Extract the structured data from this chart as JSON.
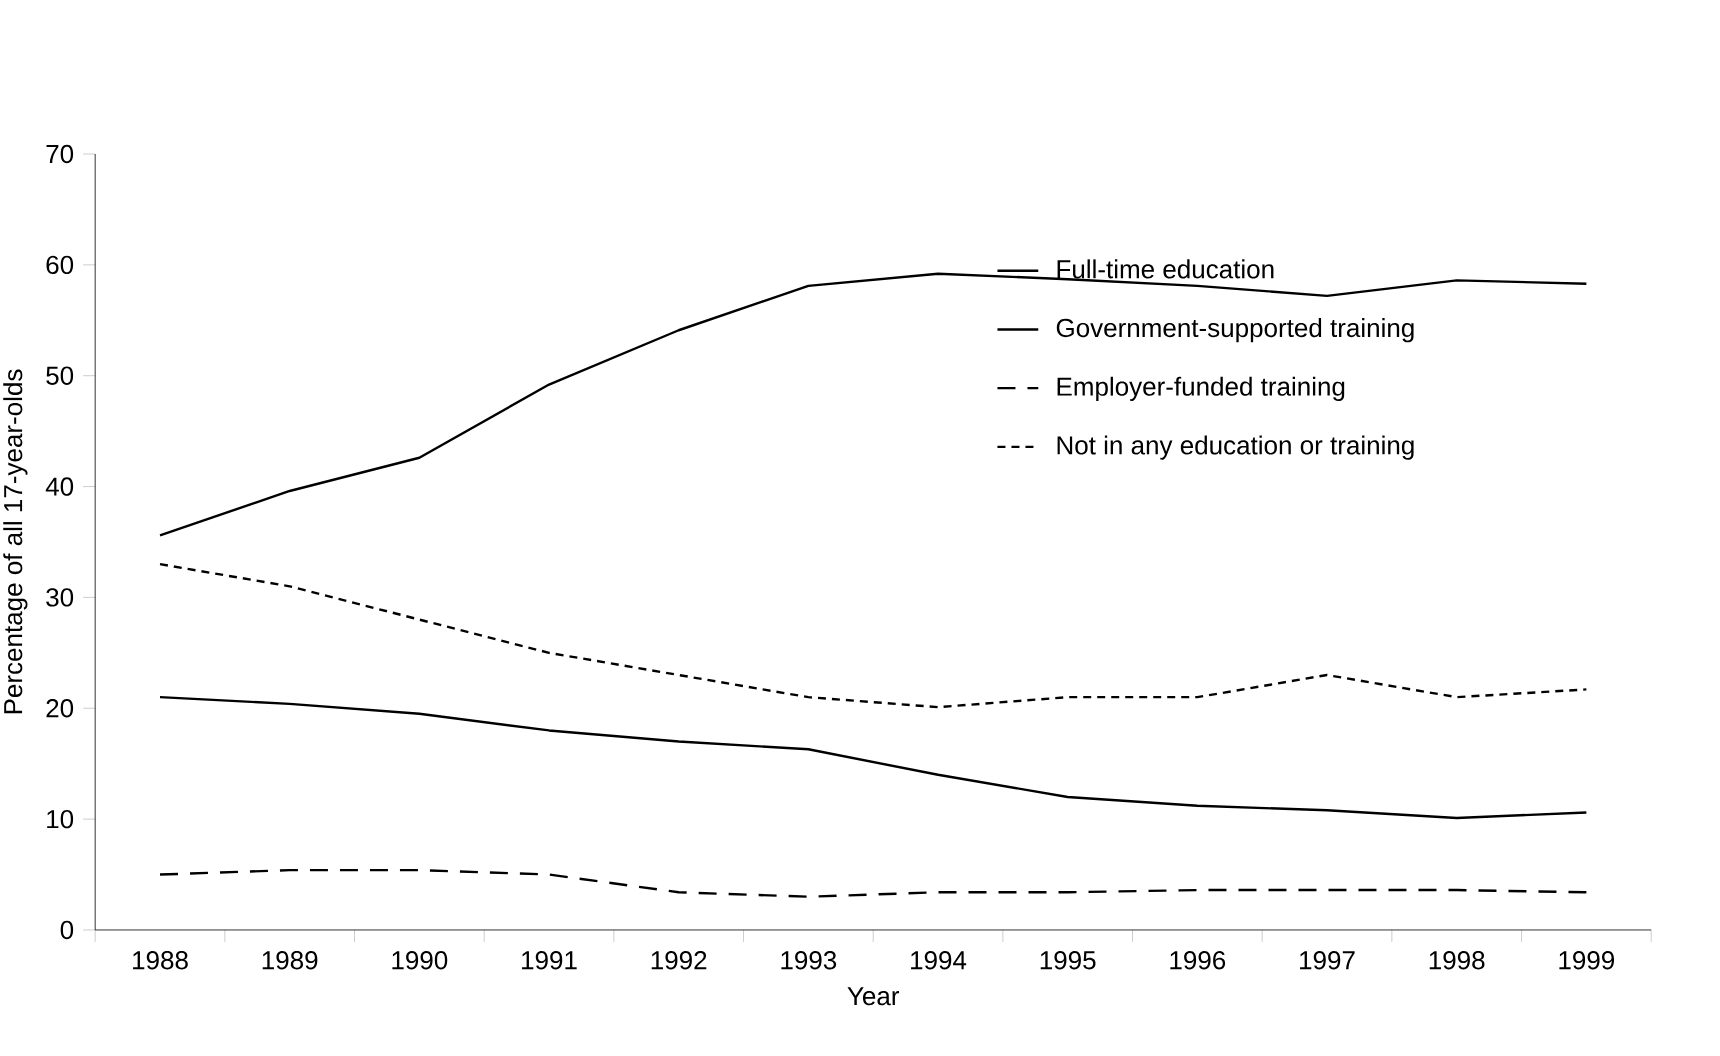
{
  "chart_data": {
    "type": "line",
    "xlabel": "Year",
    "ylabel": "Percentage of all 17-year-olds",
    "categories": [
      "1988",
      "1989",
      "1990",
      "1991",
      "1992",
      "1993",
      "1994",
      "1995",
      "1996",
      "1997",
      "1998",
      "1999"
    ],
    "series": [
      {
        "name": "Full-time education",
        "color": "#000000",
        "line_style": "solid",
        "values": [
          35.6,
          39.6,
          42.6,
          49.2,
          54.1,
          58.1,
          59.2,
          58.7,
          58.1,
          57.2,
          58.6,
          58.3
        ]
      },
      {
        "name": "Government-supported training",
        "color": "#000000",
        "line_style": "solid",
        "values": [
          21.0,
          20.4,
          19.5,
          18.0,
          17.0,
          16.3,
          14.0,
          12.0,
          11.2,
          10.8,
          10.1,
          10.6
        ]
      },
      {
        "name": "Employer-funded training",
        "color": "#000000",
        "line_style": "dashed",
        "values": [
          5.0,
          5.4,
          5.4,
          5.0,
          3.4,
          3.0,
          3.4,
          3.4,
          3.6,
          3.6,
          3.6,
          3.4
        ]
      },
      {
        "name": "Not in any education or training",
        "color": "#000000",
        "line_style": "dotted",
        "values": [
          33.0,
          31.0,
          28.0,
          25.0,
          23.0,
          21.0,
          20.1,
          21.0,
          21.0,
          23.0,
          21.0,
          21.7
        ]
      }
    ],
    "ylim": [
      0,
      70
    ],
    "yticks": [
      0,
      10,
      20,
      30,
      40,
      50,
      60,
      70
    ],
    "grid": false,
    "legend": "top right",
    "marker": "none"
  }
}
